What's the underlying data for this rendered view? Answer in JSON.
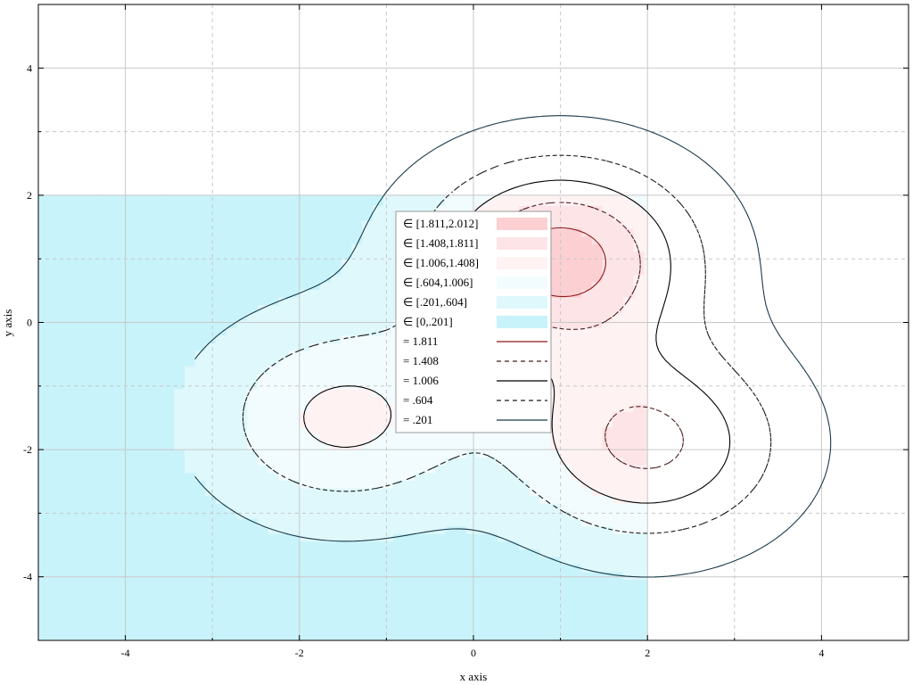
{
  "chart_data": {
    "type": "contour",
    "title": "",
    "xlabel": "x axis",
    "ylabel": "y axis",
    "xlim": [
      -5,
      5
    ],
    "ylim": [
      -5,
      5
    ],
    "x_ticks": [
      "-4",
      "-2",
      "0",
      "2",
      "4"
    ],
    "y_ticks": [
      "-4",
      "-2",
      "0",
      "2",
      "4"
    ],
    "grid": true,
    "legend_placement": "center",
    "filled_region": {
      "x": [
        -5,
        2
      ],
      "y": [
        -5,
        2
      ]
    },
    "peaks": [
      {
        "x": 1.0,
        "y": 1.0,
        "level": 2.012
      },
      {
        "x": 2.0,
        "y": -1.9,
        "level": 1.5
      },
      {
        "x": -1.5,
        "y": -1.5,
        "level": 1.1
      }
    ],
    "fill_bands": [
      {
        "label": "∈ [1.811,2.012]",
        "range": [
          1.811,
          2.012
        ],
        "color": "#fccfd3"
      },
      {
        "label": "∈ [1.408,1.811]",
        "range": [
          1.408,
          1.811
        ],
        "color": "#fde4e6"
      },
      {
        "label": "∈ [1.006,1.408]",
        "range": [
          1.006,
          1.408
        ],
        "color": "#fef2f3"
      },
      {
        "label": "∈ [.604,1.006]",
        "range": [
          0.604,
          1.006
        ],
        "color": "#f2fcfe"
      },
      {
        "label": "∈ [.201,.604]",
        "range": [
          0.201,
          0.604
        ],
        "color": "#dff8fc"
      },
      {
        "label": "∈ [0,.201]",
        "range": [
          0,
          0.201
        ],
        "color": "#c8f3fa"
      }
    ],
    "contour_lines": [
      {
        "label": "= 1.811",
        "level": 1.811,
        "color": "#8b1a1a",
        "dashed": false
      },
      {
        "label": "= 1.408",
        "level": 1.408,
        "color": "#4a1a1a",
        "dashed": true
      },
      {
        "label": "= 1.006",
        "level": 1.006,
        "color": "#000000",
        "dashed": false
      },
      {
        "label": "= .604",
        "level": 0.604,
        "color": "#1a1a1a",
        "dashed": true
      },
      {
        "label": "= .201",
        "level": 0.201,
        "color": "#1a3a4a",
        "dashed": false
      }
    ],
    "colors": {
      "grid": "#c8c8c8",
      "axis": "#000000",
      "legend_border": "#9a9a9a"
    }
  }
}
